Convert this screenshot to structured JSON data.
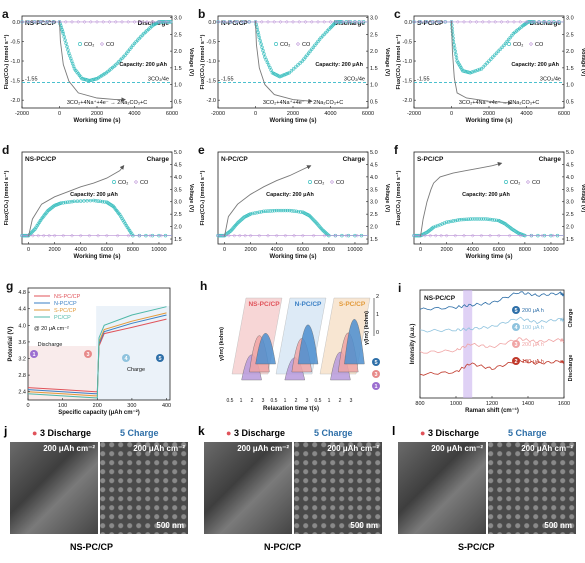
{
  "colors": {
    "co2": "#3fc0c0",
    "co": "#b98fd6",
    "voltage": "#7a7a7a",
    "dash": "#30b8c8",
    "ns": "#e0535a",
    "n": "#3a7fc4",
    "s": "#e29a3a",
    "pc": "#4fb8a8"
  },
  "panel_labels": {
    "a": "a",
    "b": "b",
    "c": "c",
    "d": "d",
    "e": "e",
    "f": "f",
    "g": "g",
    "h": "h",
    "i": "i",
    "j": "j",
    "k": "k",
    "l": "l"
  },
  "discharge_panels": [
    {
      "sample": "NS-PC/CP",
      "mode": "Discharge",
      "capacity": "Capacity: 200 μAh",
      "ref_label": "-1.55",
      "ref2": "3CO₂/4e",
      "reaction": "3CO₂+4Na⁺+4e⁻ → 2Na₂CO₃+C"
    },
    {
      "sample": "N-PC/CP",
      "mode": "Discharge",
      "capacity": "Capacity: 200 μAh",
      "ref_label": "-1.55",
      "ref2": "3CO₂/4e",
      "reaction": "3CO₂+4Na⁺+4e⁻ → 2Na₂CO₃+C"
    },
    {
      "sample": "S-PC/CP",
      "mode": "Discharge",
      "capacity": "Capacity: 200 μAh",
      "ref_label": "-1.55",
      "ref2": "3CO₂/4e",
      "reaction": "3CO₂+4Na⁺+4e⁻ → 2Na₂CO₃+C"
    }
  ],
  "charge_panels": [
    {
      "sample": "NS-PC/CP",
      "mode": "Charge",
      "capacity": "Capacity: 200 μAh"
    },
    {
      "sample": "N-PC/CP",
      "mode": "Charge",
      "capacity": "Capacity: 200 μAh"
    },
    {
      "sample": "S-PC/CP",
      "mode": "Charge",
      "capacity": "Capacity: 200 μAh"
    }
  ],
  "axes_text": {
    "flux_label": "Flux(CO₂) (mmol s⁻¹)",
    "voltage_label": "Voltage (V)",
    "time_label": "Working time (s)",
    "legend_co2": "CO₂",
    "legend_co": "CO",
    "dis_xticks": [
      "-2000",
      "0",
      "2000",
      "4000",
      "6000"
    ],
    "dis_ylticks": [
      "0.0",
      "-0.5",
      "-1.0",
      "-1.5",
      "-2.0"
    ],
    "dis_yrticks": [
      "3.0",
      "2.5",
      "2.0",
      "1.5",
      "1.0",
      "0.5"
    ],
    "chg_xticks": [
      "0",
      "2000",
      "4000",
      "6000",
      "8000",
      "10000"
    ],
    "chg_yrticks": [
      "5.0",
      "4.5",
      "4.0",
      "3.5",
      "3.0",
      "2.5",
      "2.0",
      "1.5"
    ]
  },
  "panel_g": {
    "ylabel": "Potential (V)",
    "xlabel": "Specific capacity (μAh cm⁻²)",
    "legend": [
      "NS-PC/CP",
      "N-PC/CP",
      "S-PC/CP",
      "PC/CP"
    ],
    "rate": "@ 20 μA cm⁻²",
    "discharge": "Discharge",
    "charge": "Charge",
    "xticks": [
      "0",
      "100",
      "200",
      "300",
      "400"
    ],
    "yticks": [
      "4.8",
      "4.4",
      "4.0",
      "3.6",
      "3.2",
      "2.8",
      "2.4"
    ],
    "markers": [
      "1",
      "3",
      "4",
      "5"
    ]
  },
  "panel_h": {
    "ylabel": "γ(lnτ) (kohm)",
    "xlabel": "Relaxation time τ(s)",
    "labels": [
      "NS-PC/CP",
      "N-PC/CP",
      "S-PC/CP"
    ],
    "xticks": [
      "0.5",
      "1",
      "2",
      "3",
      "0.5",
      "1",
      "2",
      "3",
      "0.5",
      "1",
      "2",
      "3"
    ],
    "yticks": [
      "0",
      "1",
      "2"
    ],
    "markers": [
      "1",
      "3",
      "5"
    ]
  },
  "panel_i": {
    "title": "NS-PC/CP",
    "ylabel": "Intensity (a.u.)",
    "xlabel": "Raman shift (cm⁻¹)",
    "xticks": [
      "800",
      "1000",
      "1200",
      "1400",
      "1600"
    ],
    "spectra": [
      {
        "marker": "5",
        "label": "200 μA h",
        "color": "#2e6fa8"
      },
      {
        "marker": "4",
        "label": "100 μA h",
        "color": "#8fc3de"
      },
      {
        "marker": "3",
        "label": "200 μA h",
        "color": "#f0a5a5"
      },
      {
        "marker": "2",
        "label": "100 μA h",
        "color": "#c0392b"
      }
    ],
    "side_charge": "Charge",
    "side_discharge": "Discharge"
  },
  "sem_panels": [
    {
      "sample": "NS-PC/CP",
      "left_marker": "3",
      "left_mode": "Discharge",
      "right_marker": "5",
      "right_mode": "Charge",
      "cap": "200 μAh cm⁻²",
      "scale": "500 nm"
    },
    {
      "sample": "N-PC/CP",
      "left_marker": "3",
      "left_mode": "Discharge",
      "right_marker": "5",
      "right_mode": "Charge",
      "cap": "200 μAh cm⁻²",
      "scale": "500 nm"
    },
    {
      "sample": "S-PC/CP",
      "left_marker": "3",
      "left_mode": "Discharge",
      "right_marker": "5",
      "right_mode": "Charge",
      "cap": "200 μAh cm⁻²",
      "scale": "500 nm"
    }
  ],
  "chart_data": [
    {
      "type": "line",
      "panel": "a",
      "title": "NS-PC/CP Discharge",
      "xlabel": "Working time (s)",
      "ylabel": "Flux(CO₂) (mmol s⁻¹)",
      "y2label": "Voltage (V)",
      "xlim": [
        -2000,
        6000
      ],
      "ylim": [
        -2.2,
        0.15
      ],
      "y2lim": [
        0.3,
        3.05
      ],
      "series": [
        {
          "name": "CO₂",
          "x": [
            -2000,
            0,
            200,
            500,
            800,
            1200,
            1600,
            2000,
            2500,
            3000,
            3500,
            4000,
            4500,
            5000,
            5300,
            5600,
            6000
          ],
          "y": [
            0,
            0,
            -0.3,
            -0.8,
            -1.2,
            -1.45,
            -1.5,
            -1.45,
            -1.3,
            -1.1,
            -0.85,
            -0.55,
            -0.3,
            -0.08,
            0,
            0,
            0
          ]
        },
        {
          "name": "CO",
          "x": [
            -2000,
            0,
            2000,
            4000,
            6000
          ],
          "y": [
            0,
            0,
            0,
            0,
            0
          ]
        },
        {
          "name": "Voltage",
          "axis": "y2",
          "x": [
            0,
            50,
            200,
            500,
            1000,
            2000,
            3000,
            3500
          ],
          "y": [
            2.9,
            2.3,
            1.6,
            1.1,
            0.75,
            0.6,
            0.55,
            0.55
          ]
        }
      ],
      "reference": {
        "y": -1.55
      }
    },
    {
      "type": "line",
      "panel": "b",
      "title": "N-PC/CP Discharge",
      "xlabel": "Working time (s)",
      "ylabel": "Flux(CO₂) (mmol s⁻¹)",
      "y2label": "Voltage (V)",
      "xlim": [
        -2000,
        6000
      ],
      "ylim": [
        -2.2,
        0.15
      ],
      "y2lim": [
        0.3,
        3.05
      ],
      "series": [
        {
          "name": "CO₂",
          "x": [
            -2000,
            0,
            200,
            500,
            900,
            1300,
            1800,
            2500,
            3000,
            3500,
            4000,
            4300,
            4600,
            6000
          ],
          "y": [
            0,
            0,
            -0.4,
            -0.9,
            -1.3,
            -1.4,
            -1.3,
            -1.0,
            -0.7,
            -0.4,
            -0.15,
            0,
            0,
            0
          ]
        },
        {
          "name": "CO",
          "x": [
            -2000,
            0,
            2000,
            4000,
            6000
          ],
          "y": [
            0,
            0,
            0,
            0,
            0
          ]
        },
        {
          "name": "Voltage",
          "axis": "y2",
          "x": [
            0,
            50,
            200,
            500,
            1000,
            2000,
            3000
          ],
          "y": [
            2.9,
            2.2,
            1.5,
            1.0,
            0.7,
            0.55,
            0.5
          ]
        }
      ],
      "reference": {
        "y": -1.55
      }
    },
    {
      "type": "line",
      "panel": "c",
      "title": "S-PC/CP Discharge",
      "xlabel": "Working time (s)",
      "ylabel": "Flux(CO₂) (mmol s⁻¹)",
      "y2label": "Voltage (V)",
      "xlim": [
        -2000,
        6000
      ],
      "ylim": [
        -2.2,
        0.15
      ],
      "y2lim": [
        0.3,
        3.05
      ],
      "series": [
        {
          "name": "CO₂",
          "x": [
            -2000,
            0,
            100,
            300,
            600,
            1000,
            1600,
            2200,
            2800,
            3300,
            3800,
            4100,
            4400,
            6000
          ],
          "y": [
            0,
            0,
            -0.5,
            -1.0,
            -1.25,
            -1.3,
            -1.2,
            -0.9,
            -0.6,
            -0.3,
            -0.1,
            0,
            0,
            0
          ]
        },
        {
          "name": "CO",
          "x": [
            -2000,
            0,
            2000,
            4000,
            6000
          ],
          "y": [
            0,
            0,
            0,
            0,
            0
          ]
        },
        {
          "name": "Voltage",
          "axis": "y2",
          "x": [
            0,
            50,
            150,
            300,
            800,
            2000,
            3200
          ],
          "y": [
            2.9,
            2.0,
            1.2,
            0.75,
            0.6,
            0.5,
            0.45
          ]
        }
      ],
      "reference": {
        "y": -1.55
      }
    },
    {
      "type": "line",
      "panel": "d",
      "title": "NS-PC/CP Charge",
      "xlabel": "Working time (s)",
      "ylabel": "Flux(CO₂) (mmol s⁻¹)",
      "y2label": "Voltage (V)",
      "xlim": [
        -500,
        11000
      ],
      "ylim": [
        -0.1,
        1.0
      ],
      "y2lim": [
        1.3,
        5.0
      ],
      "series": [
        {
          "name": "CO₂",
          "x": [
            -500,
            0,
            500,
            1000,
            1500,
            2000,
            2500,
            3500,
            5000,
            6000,
            6500,
            7000,
            7500,
            8000,
            11000
          ],
          "y": [
            0,
            0,
            0.08,
            0.2,
            0.3,
            0.36,
            0.39,
            0.41,
            0.42,
            0.4,
            0.35,
            0.25,
            0.12,
            0,
            0
          ]
        },
        {
          "name": "CO",
          "x": [
            -500,
            2000,
            6000,
            11000
          ],
          "y": [
            0,
            0,
            0,
            0
          ]
        },
        {
          "name": "Voltage",
          "axis": "y2",
          "x": [
            0,
            300,
            1000,
            2000,
            3000,
            4000,
            5000,
            6000,
            7000,
            7300
          ],
          "y": [
            1.6,
            2.3,
            2.9,
            3.2,
            3.4,
            3.6,
            3.75,
            3.95,
            4.25,
            4.45
          ]
        }
      ]
    },
    {
      "type": "line",
      "panel": "e",
      "title": "N-PC/CP Charge",
      "xlabel": "Working time (s)",
      "ylabel": "Flux(CO₂) (mmol s⁻¹)",
      "y2label": "Voltage (V)",
      "xlim": [
        -500,
        11000
      ],
      "ylim": [
        -0.1,
        1.0
      ],
      "y2lim": [
        1.3,
        5.0
      ],
      "series": [
        {
          "name": "CO₂",
          "x": [
            -500,
            0,
            500,
            1000,
            1500,
            2000,
            3000,
            4000,
            5000,
            6000,
            6500,
            7000,
            7500,
            8000,
            11000
          ],
          "y": [
            0,
            0,
            0.06,
            0.15,
            0.22,
            0.26,
            0.29,
            0.3,
            0.3,
            0.28,
            0.24,
            0.16,
            0.07,
            0,
            0
          ]
        },
        {
          "name": "CO",
          "x": [
            -500,
            2000,
            6000,
            11000
          ],
          "y": [
            0,
            0,
            0,
            0
          ]
        },
        {
          "name": "Voltage",
          "axis": "y2",
          "x": [
            0,
            300,
            1000,
            2000,
            3000,
            4000,
            5000,
            6000,
            6600
          ],
          "y": [
            1.6,
            2.4,
            2.9,
            3.3,
            3.6,
            3.85,
            4.05,
            4.3,
            4.45
          ]
        }
      ]
    },
    {
      "type": "line",
      "panel": "f",
      "title": "S-PC/CP Charge",
      "xlabel": "Working time (s)",
      "ylabel": "Flux(CO₂) (mmol s⁻¹)",
      "y2label": "Voltage (V)",
      "xlim": [
        -500,
        11000
      ],
      "ylim": [
        -0.1,
        1.0
      ],
      "y2lim": [
        1.3,
        5.0
      ],
      "series": [
        {
          "name": "CO₂",
          "x": [
            -500,
            0,
            500,
            1000,
            2000,
            3000,
            4000,
            5000,
            6000,
            6500,
            7000,
            7500,
            8000,
            11000
          ],
          "y": [
            0,
            0,
            0.04,
            0.1,
            0.16,
            0.19,
            0.2,
            0.2,
            0.18,
            0.14,
            0.08,
            0.03,
            0,
            0
          ]
        },
        {
          "name": "CO",
          "x": [
            -500,
            2000,
            6000,
            11000
          ],
          "y": [
            0,
            0,
            0,
            0
          ]
        },
        {
          "name": "Voltage",
          "axis": "y2",
          "x": [
            0,
            200,
            500,
            800,
            1000,
            1500,
            2500,
            3500,
            4500,
            5500,
            6200
          ],
          "y": [
            1.6,
            2.3,
            3.0,
            3.5,
            3.75,
            4.0,
            4.15,
            4.25,
            4.35,
            4.45,
            4.55
          ]
        }
      ]
    },
    {
      "type": "line",
      "panel": "g",
      "xlabel": "Specific capacity (μAh cm⁻²)",
      "ylabel": "Potential (V)",
      "xlim": [
        0,
        410
      ],
      "ylim": [
        2.2,
        4.9
      ],
      "series": [
        {
          "name": "NS-PC/CP",
          "x": [
            0,
            100,
            195,
            200,
            205,
            220,
            300,
            400
          ],
          "y": [
            2.5,
            2.45,
            2.4,
            2.4,
            3.5,
            3.8,
            3.95,
            4.15
          ]
        },
        {
          "name": "N-PC/CP",
          "x": [
            0,
            100,
            195,
            200,
            205,
            220,
            300,
            400
          ],
          "y": [
            2.45,
            2.4,
            2.35,
            2.35,
            3.55,
            3.85,
            4.05,
            4.25
          ]
        },
        {
          "name": "S-PC/CP",
          "x": [
            0,
            100,
            195,
            200,
            205,
            220,
            300,
            400
          ],
          "y": [
            2.4,
            2.35,
            2.3,
            2.3,
            3.6,
            3.9,
            4.1,
            4.3
          ]
        },
        {
          "name": "PC/CP",
          "x": [
            0,
            100,
            195,
            200,
            205,
            220,
            300,
            400
          ],
          "y": [
            2.35,
            2.3,
            2.25,
            2.25,
            3.7,
            4.0,
            4.25,
            4.45
          ]
        }
      ]
    },
    {
      "type": "area",
      "panel": "h",
      "xlabel": "Relaxation time τ(s)",
      "ylabel": "γ(lnτ) (kohm)",
      "series": [
        {
          "name": "NS-PC/CP",
          "peaks": [
            {
              "marker": "1",
              "tau": 1.2,
              "height": 0.9
            },
            {
              "marker": "3",
              "tau": 1.8,
              "height": 1.3
            },
            {
              "marker": "5",
              "tau": 2.2,
              "height": 1.1
            }
          ]
        },
        {
          "name": "N-PC/CP",
          "peaks": [
            {
              "marker": "1",
              "tau": 1.1,
              "height": 0.8
            },
            {
              "marker": "3",
              "tau": 1.6,
              "height": 1.2
            },
            {
              "marker": "5",
              "tau": 2.0,
              "height": 1.4
            }
          ]
        },
        {
          "name": "S-PC/CP",
          "peaks": [
            {
              "marker": "1",
              "tau": 1.3,
              "height": 1.0
            },
            {
              "marker": "3",
              "tau": 1.9,
              "height": 1.4
            },
            {
              "marker": "5",
              "tau": 2.3,
              "height": 1.6
            }
          ]
        }
      ]
    },
    {
      "type": "line",
      "panel": "i",
      "title": "NS-PC/CP",
      "xlabel": "Raman shift (cm⁻¹)",
      "ylabel": "Intensity (a.u.)",
      "xlim": [
        800,
        1600
      ],
      "series": [
        {
          "name": "200 μA h (charge)",
          "x": [
            800,
            1000,
            1080,
            1200,
            1350,
            1450,
            1580,
            1600
          ],
          "y": [
            0.82,
            0.84,
            0.86,
            0.88,
            0.98,
            0.95,
            0.97,
            0.95
          ]
        },
        {
          "name": "100 μA h (charge)",
          "x": [
            800,
            1000,
            1080,
            1200,
            1350,
            1450,
            1580,
            1600
          ],
          "y": [
            0.62,
            0.63,
            0.64,
            0.66,
            0.74,
            0.7,
            0.73,
            0.72
          ]
        },
        {
          "name": "200 μA h (discharge)",
          "x": [
            800,
            1000,
            1080,
            1200,
            1350,
            1450,
            1580,
            1600
          ],
          "y": [
            0.42,
            0.44,
            0.5,
            0.47,
            0.55,
            0.52,
            0.54,
            0.53
          ]
        },
        {
          "name": "100 μA h (discharge)",
          "x": [
            800,
            1000,
            1080,
            1200,
            1350,
            1450,
            1580,
            1600
          ],
          "y": [
            0.22,
            0.24,
            0.32,
            0.27,
            0.35,
            0.32,
            0.34,
            0.33
          ]
        }
      ],
      "highlight": [
        1040,
        1090
      ]
    }
  ]
}
